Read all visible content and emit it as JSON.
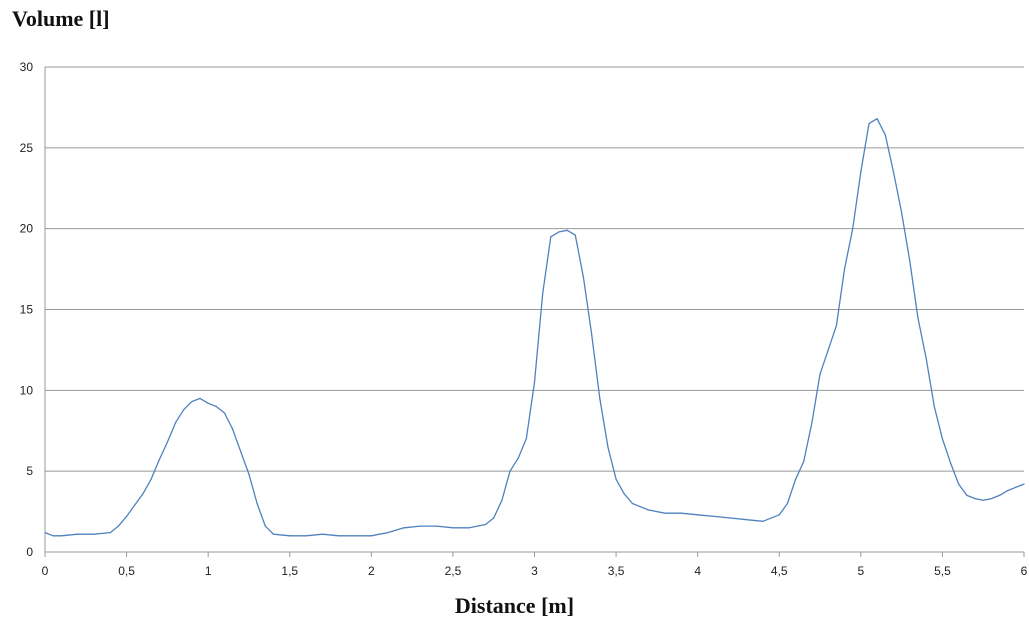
{
  "chart_data": {
    "type": "line",
    "title": "",
    "ylabel": "Volume [l]",
    "xlabel": "Distance [m]",
    "xlim": [
      0,
      6
    ],
    "ylim": [
      0,
      30
    ],
    "grid": "horizontal",
    "legend": "none",
    "line_color": "#4f81bd",
    "grid_color": "#999999",
    "x_ticks": [
      {
        "value": 0,
        "label": "0"
      },
      {
        "value": 0.5,
        "label": "0,5"
      },
      {
        "value": 1,
        "label": "1"
      },
      {
        "value": 1.5,
        "label": "1,5"
      },
      {
        "value": 2,
        "label": "2"
      },
      {
        "value": 2.5,
        "label": "2,5"
      },
      {
        "value": 3,
        "label": "3"
      },
      {
        "value": 3.5,
        "label": "3,5"
      },
      {
        "value": 4,
        "label": "4"
      },
      {
        "value": 4.5,
        "label": "4,5"
      },
      {
        "value": 5,
        "label": "5"
      },
      {
        "value": 5.5,
        "label": "5,5"
      },
      {
        "value": 6,
        "label": "6"
      }
    ],
    "y_ticks": [
      {
        "value": 0,
        "label": "0"
      },
      {
        "value": 5,
        "label": "5"
      },
      {
        "value": 10,
        "label": "10"
      },
      {
        "value": 15,
        "label": "15"
      },
      {
        "value": 20,
        "label": "20"
      },
      {
        "value": 25,
        "label": "25"
      },
      {
        "value": 30,
        "label": "30"
      }
    ],
    "series": [
      {
        "x": [
          0,
          0.05,
          0.1,
          0.2,
          0.3,
          0.4,
          0.45,
          0.5,
          0.55,
          0.6,
          0.65,
          0.7,
          0.75,
          0.8,
          0.85,
          0.9,
          0.95,
          1.0,
          1.05,
          1.1,
          1.15,
          1.2,
          1.25,
          1.3,
          1.35,
          1.4,
          1.5,
          1.6,
          1.7,
          1.8,
          1.9,
          2.0,
          2.1,
          2.2,
          2.3,
          2.4,
          2.5,
          2.6,
          2.7,
          2.75,
          2.8,
          2.85,
          2.9,
          2.95,
          3.0,
          3.05,
          3.1,
          3.15,
          3.2,
          3.25,
          3.3,
          3.35,
          3.4,
          3.45,
          3.5,
          3.55,
          3.6,
          3.7,
          3.8,
          3.9,
          4.0,
          4.1,
          4.2,
          4.3,
          4.4,
          4.5,
          4.55,
          4.6,
          4.65,
          4.7,
          4.75,
          4.8,
          4.85,
          4.9,
          4.95,
          5.0,
          5.05,
          5.1,
          5.15,
          5.2,
          5.25,
          5.3,
          5.35,
          5.4,
          5.45,
          5.5,
          5.55,
          5.6,
          5.65,
          5.7,
          5.75,
          5.8,
          5.85,
          5.9,
          5.95,
          6.0
        ],
        "y": [
          1.2,
          1.0,
          1.0,
          1.1,
          1.1,
          1.2,
          1.6,
          2.2,
          2.9,
          3.6,
          4.5,
          5.7,
          6.8,
          8.0,
          8.8,
          9.3,
          9.5,
          9.2,
          9.0,
          8.6,
          7.6,
          6.2,
          4.8,
          3.0,
          1.6,
          1.1,
          1.0,
          1.0,
          1.1,
          1.0,
          1.0,
          1.0,
          1.2,
          1.5,
          1.6,
          1.6,
          1.5,
          1.5,
          1.7,
          2.1,
          3.2,
          5.0,
          5.8,
          7.0,
          10.5,
          16.0,
          19.5,
          19.8,
          19.9,
          19.6,
          17.0,
          13.5,
          9.5,
          6.5,
          4.5,
          3.6,
          3.0,
          2.6,
          2.4,
          2.4,
          2.3,
          2.2,
          2.1,
          2.0,
          1.9,
          2.3,
          3.0,
          4.5,
          5.6,
          8.0,
          11.0,
          12.5,
          14.0,
          17.5,
          20.0,
          23.5,
          26.5,
          26.8,
          25.8,
          23.5,
          21.0,
          18.0,
          14.5,
          12.0,
          9.0,
          7.0,
          5.5,
          4.2,
          3.5,
          3.3,
          3.2,
          3.3,
          3.5,
          3.8,
          4.0,
          4.2
        ]
      }
    ]
  }
}
